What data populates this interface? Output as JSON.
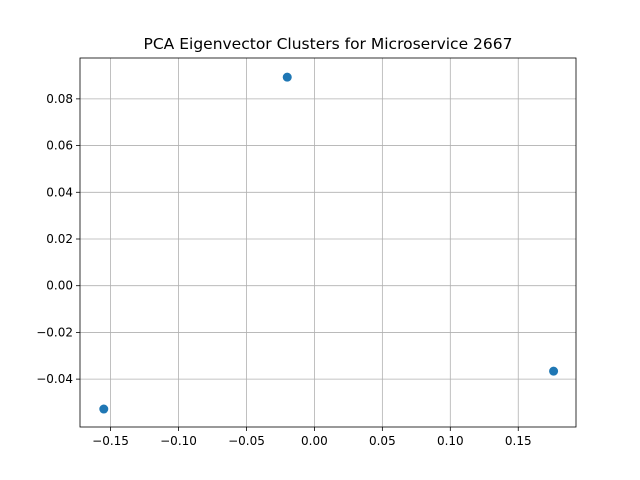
{
  "chart_data": {
    "type": "scatter",
    "title": "PCA Eigenvector Clusters for Microservice 2667",
    "xlabel": "",
    "ylabel": "",
    "xlim": [
      -0.1725,
      0.1925
    ],
    "ylim": [
      -0.0605,
      0.0975
    ],
    "x_ticks": [
      -0.15,
      -0.1,
      -0.05,
      0.0,
      0.05,
      0.1,
      0.15
    ],
    "x_tick_labels": [
      "−0.15",
      "−0.10",
      "−0.05",
      "0.00",
      "0.05",
      "0.10",
      "0.15"
    ],
    "y_ticks": [
      -0.04,
      -0.02,
      0.0,
      0.02,
      0.04,
      0.06,
      0.08
    ],
    "y_tick_labels": [
      "−0.04",
      "−0.02",
      "0.00",
      "0.02",
      "0.04",
      "0.06",
      "0.08"
    ],
    "grid": true,
    "marker_color": "#1f77b4",
    "points": [
      {
        "x": -0.155,
        "y": -0.0528
      },
      {
        "x": -0.02,
        "y": 0.0893
      },
      {
        "x": 0.176,
        "y": -0.0366
      }
    ]
  }
}
